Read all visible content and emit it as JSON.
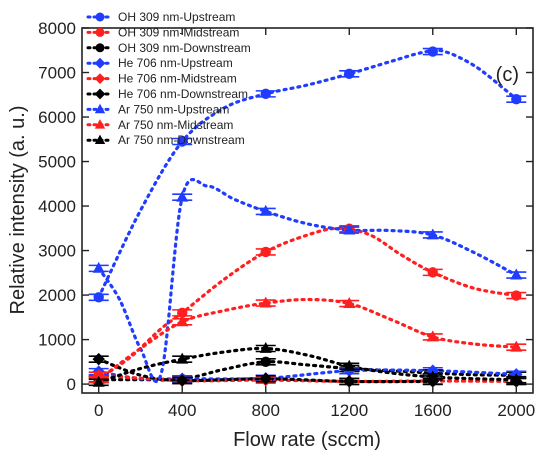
{
  "chart_data": {
    "type": "scatter",
    "panel_label": "(c)",
    "xlabel": "Flow rate (sccm)",
    "ylabel": "Relative intensity (a. u.)",
    "xlim": [
      -80,
      2080
    ],
    "ylim": [
      -200,
      8000
    ],
    "xticks": [
      0,
      400,
      800,
      1200,
      1600,
      2000
    ],
    "yticks": [
      0,
      1000,
      2000,
      3000,
      4000,
      5000,
      6000,
      7000,
      8000
    ],
    "xtick_labels": [
      "0",
      "400",
      "800",
      "1200",
      "1600",
      "2000"
    ],
    "ytick_labels": [
      "0",
      "1000",
      "2000",
      "3000",
      "4000",
      "5000",
      "6000",
      "7000",
      "8000"
    ],
    "legend_position": "top-left",
    "x": [
      0,
      400,
      800,
      1200,
      1600,
      2000
    ],
    "series": [
      {
        "name": "OH 309 nm-Upstream",
        "color": "#1f3cff",
        "marker": "circle",
        "values": [
          1950,
          5450,
          6520,
          6970,
          7470,
          6400
        ],
        "curve": [
          [
            0,
            1950
          ],
          [
            200,
            3900
          ],
          [
            400,
            5450
          ],
          [
            600,
            6200
          ],
          [
            800,
            6520
          ],
          [
            1000,
            6720
          ],
          [
            1200,
            6970
          ],
          [
            1400,
            7250
          ],
          [
            1550,
            7450
          ],
          [
            1650,
            7480
          ],
          [
            1800,
            7150
          ],
          [
            1950,
            6600
          ],
          [
            2000,
            6400
          ]
        ]
      },
      {
        "name": "OH 309 nm-Midstream",
        "color": "#ff1f1f",
        "marker": "circle",
        "values": [
          120,
          1600,
          2970,
          3490,
          2510,
          1990
        ],
        "curve": [
          [
            0,
            120
          ],
          [
            150,
            600
          ],
          [
            300,
            1250
          ],
          [
            400,
            1600
          ],
          [
            600,
            2350
          ],
          [
            800,
            2970
          ],
          [
            1000,
            3350
          ],
          [
            1150,
            3500
          ],
          [
            1300,
            3350
          ],
          [
            1450,
            2900
          ],
          [
            1600,
            2510
          ],
          [
            1800,
            2150
          ],
          [
            2000,
            1990
          ]
        ]
      },
      {
        "name": "OH 309 nm-Downstream",
        "color": "#000000",
        "marker": "circle",
        "values": [
          100,
          110,
          500,
          350,
          250,
          200
        ],
        "curve": [
          [
            0,
            100
          ],
          [
            200,
            100
          ],
          [
            400,
            110
          ],
          [
            600,
            330
          ],
          [
            800,
            500
          ],
          [
            1000,
            430
          ],
          [
            1200,
            350
          ],
          [
            1400,
            300
          ],
          [
            1600,
            250
          ],
          [
            1800,
            210
          ],
          [
            2000,
            200
          ]
        ]
      },
      {
        "name": "He 706 nm-Upstream",
        "color": "#1f3cff",
        "marker": "diamond",
        "values": [
          280,
          120,
          130,
          300,
          300,
          220
        ],
        "curve": [
          [
            0,
            280
          ],
          [
            200,
            120
          ],
          [
            400,
            120
          ],
          [
            800,
            130
          ],
          [
            1200,
            300
          ],
          [
            1600,
            300
          ],
          [
            2000,
            220
          ]
        ]
      },
      {
        "name": "He 706 nm-Midstream",
        "color": "#ff1f1f",
        "marker": "diamond",
        "values": [
          200,
          80,
          90,
          60,
          70,
          60
        ],
        "curve": [
          [
            0,
            200
          ],
          [
            400,
            80
          ],
          [
            800,
            90
          ],
          [
            1200,
            60
          ],
          [
            1600,
            70
          ],
          [
            2000,
            60
          ]
        ]
      },
      {
        "name": "He 706 nm-Downstream",
        "color": "#000000",
        "marker": "diamond",
        "values": [
          560,
          80,
          120,
          60,
          60,
          60
        ],
        "curve": [
          [
            0,
            560
          ],
          [
            200,
            200
          ],
          [
            400,
            80
          ],
          [
            800,
            120
          ],
          [
            1200,
            60
          ],
          [
            1600,
            60
          ]
        ]
      },
      {
        "name": "Ar 750 nm-Upstream",
        "color": "#1f3cff",
        "marker": "triangle",
        "values": [
          2600,
          4200,
          3880,
          3460,
          3350,
          2450
        ],
        "curve": [
          [
            0,
            2600
          ],
          [
            100,
            1900
          ],
          [
            200,
            800
          ],
          [
            300,
            250
          ],
          [
            400,
            4200
          ],
          [
            520,
            4450
          ],
          [
            650,
            4150
          ],
          [
            800,
            3880
          ],
          [
            1000,
            3600
          ],
          [
            1200,
            3460
          ],
          [
            1400,
            3450
          ],
          [
            1600,
            3350
          ],
          [
            1800,
            2950
          ],
          [
            2000,
            2450
          ]
        ]
      },
      {
        "name": "Ar 750 nm-Midstream",
        "color": "#ff1f1f",
        "marker": "triangle",
        "values": [
          100,
          1400,
          1820,
          1810,
          1060,
          830
        ],
        "curve": [
          [
            0,
            100
          ],
          [
            200,
            800
          ],
          [
            400,
            1400
          ],
          [
            600,
            1650
          ],
          [
            800,
            1820
          ],
          [
            1000,
            1900
          ],
          [
            1200,
            1810
          ],
          [
            1400,
            1450
          ],
          [
            1600,
            1060
          ],
          [
            1800,
            900
          ],
          [
            2000,
            830
          ]
        ]
      },
      {
        "name": "Ar 750 nm-Downstream",
        "color": "#000000",
        "marker": "triangle",
        "values": [
          40,
          560,
          800,
          400,
          160,
          100
        ],
        "curve": [
          [
            0,
            40
          ],
          [
            200,
            350
          ],
          [
            400,
            560
          ],
          [
            600,
            720
          ],
          [
            800,
            800
          ],
          [
            1000,
            650
          ],
          [
            1200,
            400
          ],
          [
            1400,
            250
          ],
          [
            1600,
            160
          ],
          [
            1800,
            120
          ],
          [
            2000,
            100
          ]
        ]
      }
    ]
  }
}
